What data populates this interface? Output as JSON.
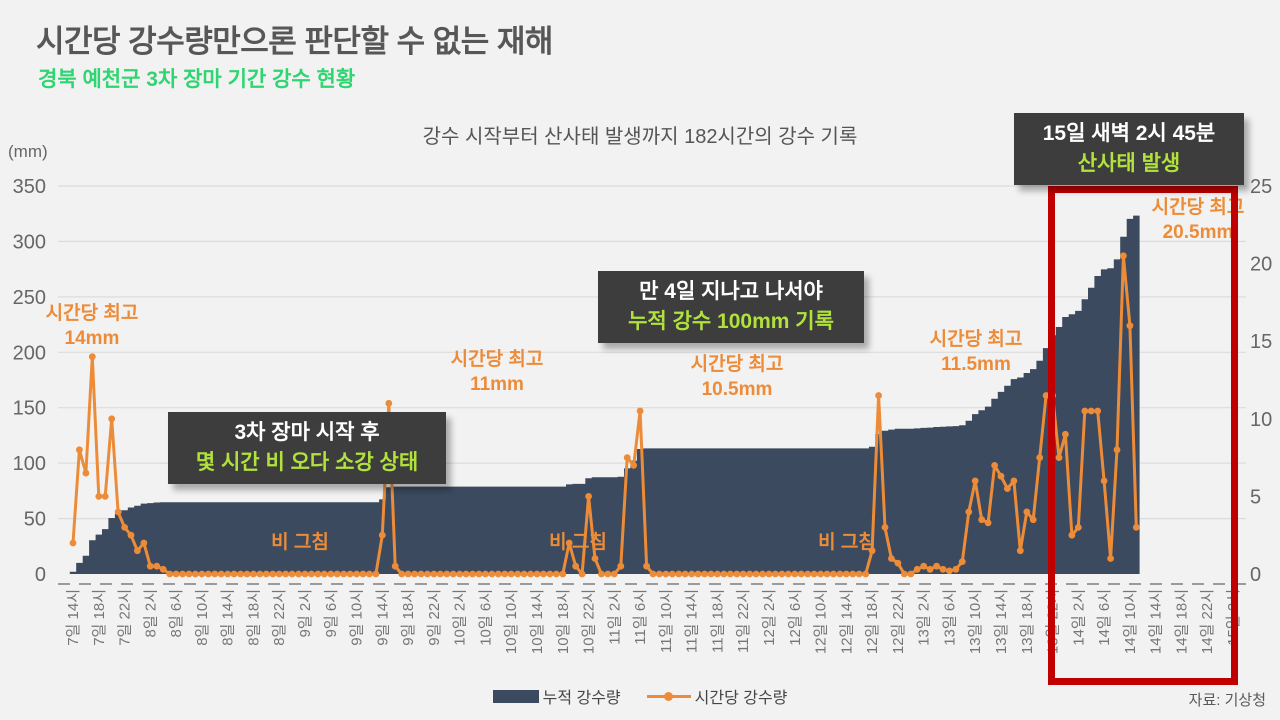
{
  "header": {
    "title": "시간당 강수량만으론 판단할 수 없는 재해",
    "subtitle": "경북 예천군 3차 장마 기간 강수 현황"
  },
  "chart_data": {
    "type": "area+line combo (hourly rainfall vs cumulative rainfall)",
    "title": "강수 시작부터 산사태 발생까지 182시간의 강수 기록",
    "unit_label": "(mm)",
    "left_axis": {
      "ticks": [
        "350",
        "300",
        "250",
        "200",
        "150",
        "100",
        "50",
        "0"
      ],
      "max": 350,
      "min": 0
    },
    "right_axis": {
      "ticks": [
        "25",
        "20",
        "15",
        "10",
        "5",
        "0"
      ],
      "max": 25,
      "min": 0
    },
    "x_tick_labels": [
      "7일 14시",
      "7일 18시",
      "7일 22시",
      "8일 2시",
      "8일 6시",
      "8일 10시",
      "8일 14시",
      "8일 18시",
      "8일 22시",
      "9일 2시",
      "9일 6시",
      "9일 10시",
      "9일 14시",
      "9일 18시",
      "9일 22시",
      "10일 2시",
      "10일 6시",
      "10일 10시",
      "10일 14시",
      "10일 18시",
      "10일 22시",
      "11일 2시",
      "11일 6시",
      "11일 10시",
      "11일 14시",
      "11일 18시",
      "11일 22시",
      "12일 2시",
      "12일 6시",
      "12일 10시",
      "12일 14시",
      "12일 18시",
      "12일 22시",
      "13일 2시",
      "13일 6시",
      "13일 10시",
      "13일 14시",
      "13일 18시",
      "13일 22시",
      "14일 2시",
      "14일 6시",
      "14일 10시",
      "14일 14시",
      "14일 18시",
      "14일 22시",
      "15일 2시"
    ],
    "hours_per_tick": 4,
    "series": [
      {
        "name": "누적 강수량",
        "type": "area",
        "axis": "left",
        "color": "#3b4a5e",
        "note": "cumulative sum of hourly values, final ≈ 320mm"
      },
      {
        "name": "시간당 강수량",
        "type": "line",
        "axis": "right",
        "color": "#ed8c38",
        "values_mm_per_hour": [
          2,
          8,
          6.5,
          14,
          5,
          5,
          10,
          4,
          3,
          2.5,
          1.5,
          2,
          0.5,
          0.5,
          0.3,
          0,
          0,
          0,
          0,
          0,
          0,
          0,
          0,
          0,
          0,
          0,
          0,
          0,
          0,
          0,
          0,
          0,
          0,
          0,
          0,
          0,
          0,
          0,
          0,
          0,
          0,
          0,
          0,
          0,
          0,
          0,
          0,
          0,
          2.5,
          11,
          0.5,
          0,
          0,
          0,
          0,
          0,
          0,
          0,
          0,
          0,
          0,
          0,
          0,
          0,
          0,
          0,
          0,
          0,
          0,
          0,
          0,
          0,
          0,
          0,
          0,
          0,
          0,
          2,
          0.5,
          0,
          5,
          1,
          0,
          0,
          0,
          0.5,
          7.5,
          7,
          10.5,
          0.5,
          0,
          0,
          0,
          0,
          0,
          0,
          0,
          0,
          0,
          0,
          0,
          0,
          0,
          0,
          0,
          0,
          0,
          0,
          0,
          0,
          0,
          0,
          0,
          0,
          0,
          0,
          0,
          0,
          0,
          0,
          0,
          0,
          0,
          0,
          1.5,
          11.5,
          3,
          1,
          0.7,
          0,
          0,
          0.3,
          0.5,
          0.3,
          0.5,
          0.3,
          0.2,
          0.3,
          0.8,
          4,
          6,
          3.5,
          3.3,
          7,
          6.3,
          5.5,
          6,
          1.5,
          4,
          3.5,
          7.5,
          11.5,
          11.5,
          7.5,
          9,
          2.5,
          3,
          10.5,
          10.5,
          10.5,
          6,
          1,
          8,
          20.5,
          16,
          3
        ]
      }
    ],
    "peak_annotations": [
      {
        "line1": "시간당 최고",
        "line2": "14mm"
      },
      {
        "line1": "시간당 최고",
        "line2": "11mm"
      },
      {
        "line1": "시간당 최고",
        "line2": "10.5mm"
      },
      {
        "line1": "시간당 최고",
        "line2": "11.5mm"
      },
      {
        "line1": "시간당 최고",
        "line2": "20.5mm"
      }
    ],
    "rain_stop_labels": [
      "비 그침",
      "비 그침",
      "비 그침"
    ],
    "callouts": [
      {
        "line1": "3차 장마 시작 후",
        "line2": "몇 시간 비 오다 소강 상태"
      },
      {
        "line1": "만 4일 지나고 나서야",
        "line2": "누적 강수 100mm 기록"
      },
      {
        "line1": "15일 새벽 2시 45분",
        "line2": "산사태 발생"
      }
    ],
    "highlight_box_color": "#c00000",
    "legend_position": "bottom-center",
    "grid": "horizontal lines every 50mm (left) / 5mm (right)",
    "source": "자료: 기상청"
  },
  "colors": {
    "background": "#f2f2f2",
    "title_gray": "#575757",
    "subtitle_green": "#2fd571",
    "area_navy": "#3b4a5e",
    "line_orange": "#ed8c38",
    "callout_bg": "#3d3d3d",
    "callout_highlight": "#b1e23b",
    "highlight_red": "#c00000"
  }
}
